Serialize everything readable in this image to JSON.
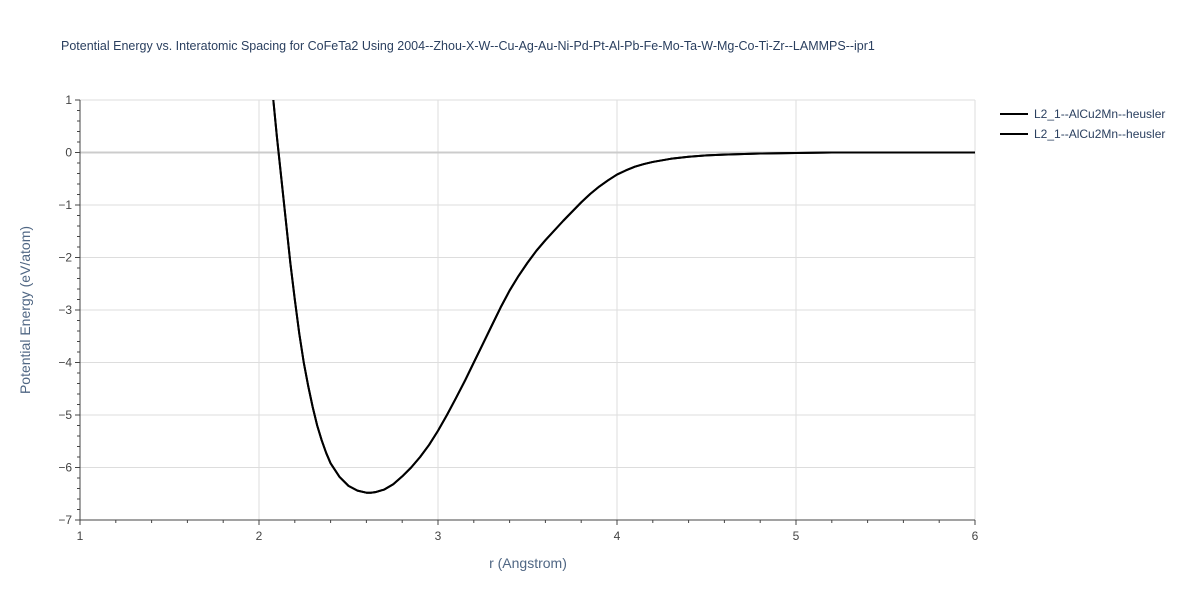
{
  "chart_data": {
    "type": "line",
    "title": "Potential Energy vs. Interatomic Spacing for CoFeTa2 Using 2004--Zhou-X-W--Cu-Ag-Au-Ni-Pd-Pt-Al-Pb-Fe-Mo-Ta-W-Mg-Co-Ti-Zr--LAMMPS--ipr1",
    "xlabel": "r (Angstrom)",
    "ylabel": "Potential Energy (eV/atom)",
    "xlim": [
      1,
      6
    ],
    "ylim": [
      -7,
      1
    ],
    "xticks": [
      1,
      2,
      3,
      4,
      5,
      6
    ],
    "yticks": [
      1,
      0,
      -1,
      -2,
      -3,
      -4,
      -5,
      -6,
      -7
    ],
    "xtick_labels": [
      "1",
      "2",
      "3",
      "4",
      "5",
      "6"
    ],
    "ytick_labels": [
      "1",
      "0",
      "−1",
      "−2",
      "−3",
      "−4",
      "−5",
      "−6",
      "−7"
    ],
    "grid": true,
    "legend_position": "top-right",
    "line_color": "#000000",
    "series": [
      {
        "name": "L2_1--AlCu2Mn--heusler",
        "x": [
          2.08,
          2.1,
          2.125,
          2.15,
          2.175,
          2.2,
          2.225,
          2.25,
          2.275,
          2.3,
          2.325,
          2.35,
          2.375,
          2.4,
          2.45,
          2.5,
          2.55,
          2.6,
          2.625,
          2.65,
          2.7,
          2.75,
          2.8,
          2.85,
          2.9,
          2.95,
          3.0,
          3.05,
          3.1,
          3.15,
          3.2,
          3.25,
          3.3,
          3.35,
          3.4,
          3.45,
          3.5,
          3.55,
          3.6,
          3.7,
          3.8,
          3.85,
          3.9,
          3.95,
          4.0,
          4.05,
          4.1,
          4.15,
          4.2,
          4.3,
          4.4,
          4.5,
          4.6,
          4.8,
          5.0,
          5.2,
          5.5,
          6.0
        ],
        "y": [
          1.0,
          0.3,
          -0.5,
          -1.3,
          -2.1,
          -2.8,
          -3.45,
          -4.0,
          -4.45,
          -4.85,
          -5.2,
          -5.48,
          -5.72,
          -5.92,
          -6.18,
          -6.35,
          -6.44,
          -6.48,
          -6.48,
          -6.47,
          -6.42,
          -6.32,
          -6.17,
          -6.0,
          -5.8,
          -5.57,
          -5.3,
          -5.0,
          -4.68,
          -4.35,
          -4.0,
          -3.65,
          -3.3,
          -2.95,
          -2.63,
          -2.35,
          -2.1,
          -1.87,
          -1.67,
          -1.3,
          -0.95,
          -0.79,
          -0.65,
          -0.53,
          -0.42,
          -0.34,
          -0.27,
          -0.22,
          -0.18,
          -0.12,
          -0.08,
          -0.055,
          -0.04,
          -0.02,
          -0.01,
          0.0,
          0.0,
          0.0
        ]
      },
      {
        "name": "L2_1--AlCu2Mn--heusler",
        "x": [
          2.08,
          2.1,
          2.125,
          2.15,
          2.175,
          2.2,
          2.225,
          2.25,
          2.275,
          2.3,
          2.325,
          2.35,
          2.375,
          2.4,
          2.45,
          2.5,
          2.55,
          2.6,
          2.625,
          2.65,
          2.7,
          2.75,
          2.8,
          2.85,
          2.9,
          2.95,
          3.0,
          3.05,
          3.1,
          3.15,
          3.2,
          3.25,
          3.3,
          3.35,
          3.4,
          3.45,
          3.5,
          3.55,
          3.6,
          3.7,
          3.8,
          3.85,
          3.9,
          3.95,
          4.0,
          4.05,
          4.1,
          4.15,
          4.2,
          4.3,
          4.4,
          4.5,
          4.6,
          4.8,
          5.0,
          5.2,
          5.5,
          6.0
        ],
        "y": [
          1.0,
          0.3,
          -0.5,
          -1.3,
          -2.1,
          -2.8,
          -3.45,
          -4.0,
          -4.45,
          -4.85,
          -5.2,
          -5.48,
          -5.72,
          -5.92,
          -6.18,
          -6.35,
          -6.44,
          -6.48,
          -6.48,
          -6.47,
          -6.42,
          -6.32,
          -6.17,
          -6.0,
          -5.8,
          -5.57,
          -5.3,
          -5.0,
          -4.68,
          -4.35,
          -4.0,
          -3.65,
          -3.3,
          -2.95,
          -2.63,
          -2.35,
          -2.1,
          -1.87,
          -1.67,
          -1.3,
          -0.95,
          -0.79,
          -0.65,
          -0.53,
          -0.42,
          -0.34,
          -0.27,
          -0.22,
          -0.18,
          -0.12,
          -0.08,
          -0.055,
          -0.04,
          -0.02,
          -0.01,
          0.0,
          0.0,
          0.0
        ]
      }
    ]
  }
}
